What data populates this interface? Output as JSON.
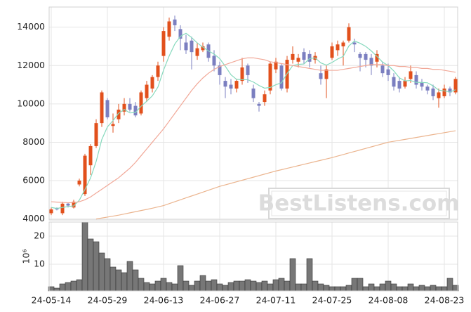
{
  "chart_data": {
    "type": "candlestick",
    "x": [
      "24-05-14",
      "24-05-16",
      "24-05-17",
      "24-05-20",
      "24-05-21",
      "24-05-22",
      "24-05-23",
      "24-05-24",
      "24-05-27",
      "24-05-28",
      "24-05-29",
      "24-05-30",
      "24-05-31",
      "24-06-03",
      "24-06-04",
      "24-06-05",
      "24-06-07",
      "24-06-10",
      "24-06-11",
      "24-06-12",
      "24-06-13",
      "24-06-14",
      "24-06-17",
      "24-06-18",
      "24-06-19",
      "24-06-20",
      "24-06-21",
      "24-06-24",
      "24-06-25",
      "24-06-26",
      "24-06-27",
      "24-06-28",
      "24-07-01",
      "24-07-02",
      "24-07-03",
      "24-07-04",
      "24-07-05",
      "24-07-08",
      "24-07-09",
      "24-07-10",
      "24-07-11",
      "24-07-12",
      "24-07-15",
      "24-07-16",
      "24-07-17",
      "24-07-18",
      "24-07-19",
      "24-07-22",
      "24-07-23",
      "24-07-24",
      "24-07-25",
      "24-07-26",
      "24-07-29",
      "24-07-30",
      "24-07-31",
      "24-08-01",
      "24-08-02",
      "24-08-05",
      "24-08-06",
      "24-08-07",
      "24-08-08",
      "24-08-09",
      "24-08-12",
      "24-08-13",
      "24-08-14",
      "24-08-16",
      "24-08-19",
      "24-08-20",
      "24-08-21",
      "24-08-22",
      "24-08-23",
      "24-08-26",
      "24-08-27"
    ],
    "xticks": [
      "24-05-14",
      "24-05-29",
      "24-06-13",
      "24-06-27",
      "24-07-11",
      "24-07-25",
      "24-08-08",
      "24-08-23"
    ],
    "open": [
      4300,
      4550,
      4300,
      4800,
      4600,
      5800,
      5300,
      6800,
      7800,
      9000,
      10200,
      8850,
      9200,
      9600,
      10000,
      9900,
      9500,
      10300,
      10800,
      11400,
      12500,
      13500,
      14400,
      13900,
      13200,
      13300,
      12500,
      12800,
      13100,
      12500,
      12000,
      11200,
      11000,
      10800,
      11200,
      12000,
      10800,
      10000,
      10100,
      10700,
      11800,
      12000,
      10800,
      12300,
      12200,
      12700,
      12600,
      12300,
      11600,
      11300,
      12400,
      12800,
      13000,
      13300,
      13200,
      12600,
      12600,
      12400,
      12200,
      12000,
      11800,
      11400,
      11200,
      10900,
      11300,
      11500,
      11100,
      10900,
      10800,
      10300,
      10400,
      10800,
      10600
    ],
    "high": [
      4600,
      4600,
      4900,
      4850,
      5000,
      6100,
      7400,
      7900,
      9200,
      10700,
      10300,
      9500,
      10000,
      10300,
      10300,
      10100,
      10700,
      11200,
      11500,
      12200,
      14000,
      14500,
      14600,
      14100,
      13600,
      13500,
      13200,
      13200,
      13200,
      12800,
      12200,
      11400,
      11300,
      11300,
      12400,
      12100,
      11000,
      10100,
      10700,
      12200,
      12400,
      12100,
      12500,
      13000,
      12600,
      12900,
      12800,
      12700,
      12000,
      12000,
      13200,
      13300,
      13300,
      14200,
      13400,
      12700,
      12700,
      12600,
      12800,
      12200,
      12100,
      11600,
      11400,
      11400,
      12000,
      11700,
      11300,
      11000,
      11000,
      10800,
      11000,
      10900,
      11400
    ],
    "low": [
      4200,
      4450,
      4200,
      4600,
      4550,
      5700,
      5200,
      6300,
      7700,
      8800,
      9200,
      8500,
      9000,
      9400,
      9600,
      9300,
      9400,
      10100,
      10600,
      11200,
      12200,
      13300,
      13800,
      12800,
      12600,
      11800,
      12300,
      12700,
      12200,
      11700,
      11000,
      10300,
      10500,
      10600,
      11000,
      11100,
      10100,
      9600,
      9900,
      10500,
      11600,
      10700,
      10600,
      12100,
      11900,
      12100,
      11900,
      12100,
      11000,
      10300,
      12300,
      12500,
      12000,
      13200,
      12700,
      11700,
      11900,
      11500,
      11900,
      11400,
      11200,
      10700,
      10600,
      10800,
      11100,
      10800,
      10700,
      10500,
      10200,
      9800,
      10300,
      10400,
      10500
    ],
    "close": [
      4500,
      4500,
      4800,
      4700,
      4900,
      6000,
      7300,
      7800,
      9000,
      10600,
      9300,
      8950,
      9700,
      10000,
      9700,
      9400,
      10600,
      11000,
      11400,
      12000,
      13800,
      14300,
      14100,
      13400,
      12800,
      12700,
      12900,
      13000,
      12400,
      12000,
      11500,
      10900,
      10800,
      11200,
      11900,
      11500,
      10300,
      9900,
      10500,
      12100,
      12200,
      10800,
      12300,
      12600,
      12400,
      12300,
      12200,
      12500,
      11300,
      11800,
      13000,
      13100,
      13200,
      14000,
      13100,
      12400,
      12300,
      12000,
      12600,
      11600,
      11500,
      10900,
      10800,
      11200,
      11700,
      11000,
      10900,
      10700,
      10400,
      10600,
      10800,
      10600,
      11300
    ],
    "up_color": "#e2501c",
    "down_color": "#7b7fc0",
    "moving_averages": [
      {
        "color": "#86d9bd",
        "values": [
          4600,
          4550,
          4600,
          4650,
          4680,
          4980,
          5540,
          6140,
          7000,
          8140,
          8800,
          9130,
          9510,
          9710,
          9530,
          9550,
          9880,
          10140,
          10420,
          10880,
          11760,
          12500,
          13120,
          13520,
          13680,
          13460,
          13180,
          12960,
          12760,
          12600,
          12360,
          11960,
          11520,
          11280,
          11260,
          11260,
          11140,
          10960,
          10820,
          10860,
          11000,
          11100,
          11580,
          12000,
          12060,
          12080,
          12360,
          12400,
          12140,
          12020,
          12160,
          12340,
          12480,
          13020,
          13280,
          13160,
          13000,
          12760,
          12480,
          12180,
          12000,
          11720,
          11360,
          11200,
          11220,
          11120,
          11120,
          11100,
          10940,
          10720,
          10680,
          10620,
          10740
        ]
      },
      {
        "color": "#f1a898",
        "values": [
          4900,
          4880,
          4860,
          4850,
          4850,
          4900,
          5000,
          5150,
          5350,
          5550,
          5750,
          5950,
          6150,
          6400,
          6650,
          6950,
          7300,
          7650,
          8000,
          8350,
          8700,
          9100,
          9500,
          9900,
          10300,
          10700,
          11050,
          11350,
          11600,
          11800,
          11950,
          12050,
          12150,
          12250,
          12350,
          12400,
          12400,
          12350,
          12300,
          12200,
          12150,
          12100,
          12050,
          12000,
          11950,
          11900,
          11850,
          11800,
          11750,
          11750,
          11750,
          11750,
          11800,
          11850,
          11900,
          11950,
          12000,
          12050,
          12050,
          12050,
          12000,
          12000,
          11950,
          11950,
          11900,
          11900,
          11850,
          11850,
          11800,
          11800,
          11750,
          11700,
          11650
        ]
      },
      {
        "color": "#ebb48e",
        "values": [
          null,
          null,
          null,
          null,
          null,
          null,
          null,
          null,
          4000,
          4050,
          4100,
          4150,
          4200,
          4260,
          4320,
          4380,
          4440,
          4500,
          4560,
          4630,
          4700,
          4800,
          4900,
          5000,
          5100,
          5200,
          5300,
          5400,
          5500,
          5600,
          5700,
          5780,
          5860,
          5940,
          6020,
          6100,
          6180,
          6260,
          6340,
          6420,
          6500,
          6570,
          6640,
          6710,
          6780,
          6850,
          6920,
          6990,
          7060,
          7130,
          7200,
          7280,
          7360,
          7440,
          7520,
          7600,
          7680,
          7760,
          7840,
          7920,
          8000,
          8050,
          8100,
          8150,
          8200,
          8250,
          8300,
          8350,
          8400,
          8450,
          8500,
          8550,
          8600
        ]
      }
    ],
    "ylim": [
      3950,
      15050
    ],
    "yticks": [
      4000,
      6000,
      8000,
      10000,
      12000,
      14000
    ],
    "volume": {
      "values": [
        2,
        1.5,
        3,
        3.5,
        4,
        4.5,
        25,
        19,
        18,
        14,
        12,
        9,
        8,
        7,
        11,
        8,
        5,
        3.5,
        3,
        4,
        5,
        3.5,
        3,
        9.5,
        4,
        2.5,
        4,
        6,
        4,
        4.5,
        3,
        2.5,
        3.5,
        4,
        4,
        4.5,
        4,
        3.5,
        4,
        3,
        4.5,
        5,
        4,
        12,
        3,
        3,
        12,
        4,
        3,
        2.5,
        2,
        2,
        2,
        2.5,
        5,
        5,
        2,
        3,
        2,
        3,
        4,
        3,
        2,
        2,
        3,
        2,
        2.5,
        2,
        2.5,
        2,
        2,
        5,
        2.5
      ],
      "color": "#777777",
      "ylim": [
        0.5,
        25
      ],
      "yticks": [
        10,
        20
      ],
      "ylabel": "10⁶"
    },
    "grid": true,
    "watermark": "BestListens.com"
  }
}
